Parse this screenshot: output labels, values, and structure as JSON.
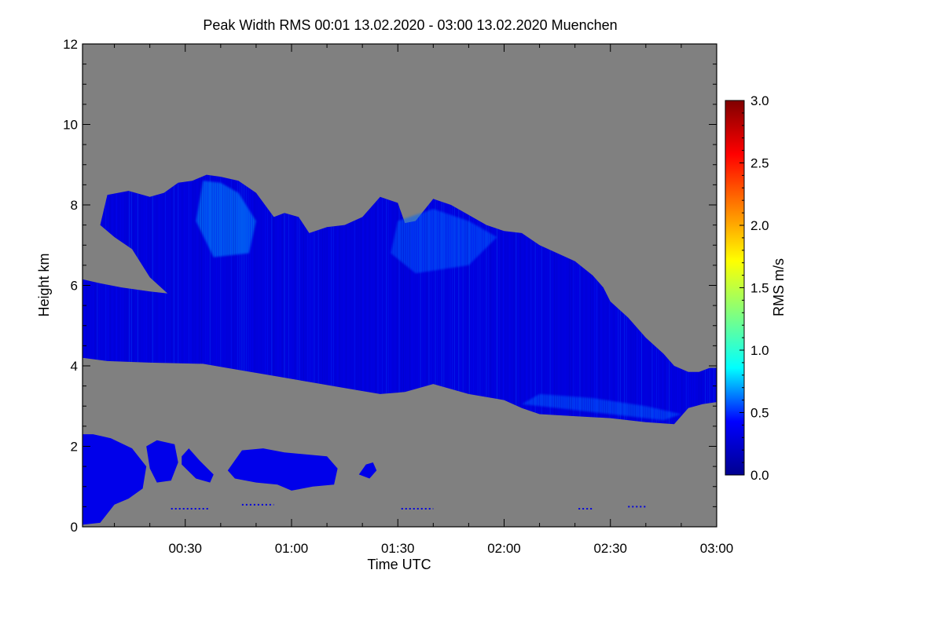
{
  "chart_data": {
    "type": "heatmap",
    "title": "Peak Width RMS   00:01 13.02.2020 - 03:00 13.02.2020 Muenchen",
    "xlabel": "Time UTC",
    "ylabel": "Height km",
    "x_ticks": [
      "00:30",
      "01:00",
      "01:30",
      "02:00",
      "02:30",
      "03:00"
    ],
    "x_tick_minutes": [
      30,
      60,
      90,
      120,
      150,
      180
    ],
    "xlim_minutes": [
      1,
      180
    ],
    "y_ticks": [
      0,
      2,
      4,
      6,
      8,
      10,
      12
    ],
    "ylim": [
      0,
      12
    ],
    "background_color": "#808080",
    "colorbar": {
      "label": "RMS m/s",
      "range": [
        0.0,
        3.0
      ],
      "ticks": [
        "0.0",
        "0.5",
        "1.0",
        "1.5",
        "2.0",
        "2.5",
        "3.0"
      ],
      "tick_values": [
        0.0,
        0.5,
        1.0,
        1.5,
        2.0,
        2.5,
        3.0
      ],
      "colors": [
        "#00008f",
        "#0000ff",
        "#00ffff",
        "#80ff80",
        "#ffff00",
        "#ff8000",
        "#ff0000",
        "#800000"
      ]
    },
    "regions": [
      {
        "name": "main-cloud-layer",
        "rms_typical": 0.3,
        "outline": [
          [
            1,
            4.2
          ],
          [
            8,
            4.12
          ],
          [
            20,
            4.08
          ],
          [
            35,
            4.05
          ],
          [
            45,
            3.9
          ],
          [
            55,
            3.75
          ],
          [
            65,
            3.6
          ],
          [
            75,
            3.45
          ],
          [
            85,
            3.3
          ],
          [
            92,
            3.35
          ],
          [
            100,
            3.55
          ],
          [
            110,
            3.3
          ],
          [
            120,
            3.15
          ],
          [
            125,
            2.95
          ],
          [
            130,
            2.8
          ],
          [
            140,
            2.75
          ],
          [
            150,
            2.7
          ],
          [
            160,
            2.6
          ],
          [
            168,
            2.55
          ],
          [
            172,
            2.95
          ],
          [
            176,
            3.05
          ],
          [
            180,
            3.1
          ],
          [
            180,
            3.95
          ],
          [
            178,
            3.95
          ],
          [
            175,
            3.85
          ],
          [
            172,
            3.85
          ],
          [
            168,
            4.0
          ],
          [
            165,
            4.3
          ],
          [
            160,
            4.7
          ],
          [
            155,
            5.2
          ],
          [
            150,
            5.6
          ],
          [
            148,
            5.95
          ],
          [
            145,
            6.25
          ],
          [
            140,
            6.6
          ],
          [
            130,
            7.0
          ],
          [
            125,
            7.3
          ],
          [
            120,
            7.35
          ],
          [
            115,
            7.5
          ],
          [
            110,
            7.75
          ],
          [
            105,
            8.0
          ],
          [
            100,
            8.15
          ],
          [
            95,
            7.6
          ],
          [
            92,
            7.55
          ],
          [
            90,
            8.05
          ],
          [
            85,
            8.2
          ],
          [
            80,
            7.7
          ],
          [
            75,
            7.5
          ],
          [
            70,
            7.45
          ],
          [
            65,
            7.3
          ],
          [
            62,
            7.7
          ],
          [
            58,
            7.8
          ],
          [
            55,
            7.7
          ],
          [
            50,
            8.3
          ],
          [
            45,
            8.6
          ],
          [
            40,
            8.7
          ],
          [
            36,
            8.75
          ],
          [
            32,
            8.6
          ],
          [
            28,
            8.55
          ],
          [
            24,
            8.3
          ],
          [
            20,
            8.2
          ],
          [
            14,
            8.35
          ],
          [
            8,
            8.25
          ],
          [
            6,
            7.5
          ],
          [
            10,
            7.2
          ],
          [
            15,
            6.9
          ],
          [
            20,
            6.2
          ],
          [
            25,
            5.8
          ],
          [
            20,
            5.85
          ],
          [
            12,
            5.95
          ],
          [
            6,
            6.05
          ],
          [
            1,
            6.15
          ]
        ]
      },
      {
        "name": "low-cloud-left",
        "rms_typical": 0.35,
        "outline": [
          [
            1,
            0.05
          ],
          [
            6,
            0.1
          ],
          [
            10,
            0.55
          ],
          [
            14,
            0.7
          ],
          [
            18,
            0.95
          ],
          [
            19,
            1.5
          ],
          [
            15,
            1.95
          ],
          [
            9,
            2.2
          ],
          [
            4,
            2.3
          ],
          [
            1,
            2.3
          ]
        ]
      },
      {
        "name": "low-cloud-small-1",
        "rms_typical": 0.35,
        "outline": [
          [
            19,
            2.0
          ],
          [
            22,
            2.15
          ],
          [
            27,
            2.05
          ],
          [
            28,
            1.6
          ],
          [
            26,
            1.15
          ],
          [
            22,
            1.1
          ],
          [
            20,
            1.45
          ]
        ]
      },
      {
        "name": "low-cloud-small-2",
        "rms_typical": 0.35,
        "outline": [
          [
            29,
            1.75
          ],
          [
            31,
            1.95
          ],
          [
            34,
            1.65
          ],
          [
            38,
            1.3
          ],
          [
            37,
            1.1
          ],
          [
            33,
            1.2
          ],
          [
            29,
            1.55
          ]
        ]
      },
      {
        "name": "low-cloud-center",
        "rms_typical": 0.35,
        "outline": [
          [
            42,
            1.4
          ],
          [
            46,
            1.9
          ],
          [
            52,
            1.95
          ],
          [
            58,
            1.85
          ],
          [
            64,
            1.8
          ],
          [
            70,
            1.75
          ],
          [
            73,
            1.45
          ],
          [
            72,
            1.05
          ],
          [
            66,
            1.0
          ],
          [
            60,
            0.9
          ],
          [
            56,
            1.05
          ],
          [
            50,
            1.1
          ],
          [
            44,
            1.2
          ]
        ]
      },
      {
        "name": "low-cloud-speck",
        "rms_typical": 0.35,
        "outline": [
          [
            79,
            1.3
          ],
          [
            81,
            1.55
          ],
          [
            83,
            1.6
          ],
          [
            84,
            1.4
          ],
          [
            82,
            1.2
          ]
        ]
      }
    ],
    "enhanced_regions": [
      {
        "name": "upper-left-turbulence",
        "rms_typical": 0.7,
        "outline": [
          [
            35,
            8.6
          ],
          [
            40,
            8.55
          ],
          [
            45,
            8.3
          ],
          [
            50,
            7.6
          ],
          [
            48,
            6.8
          ],
          [
            38,
            6.7
          ],
          [
            33,
            7.6
          ]
        ]
      },
      {
        "name": "upper-middle-turbulence",
        "rms_typical": 0.6,
        "outline": [
          [
            90,
            7.6
          ],
          [
            100,
            7.9
          ],
          [
            110,
            7.6
          ],
          [
            118,
            7.2
          ],
          [
            110,
            6.5
          ],
          [
            95,
            6.3
          ],
          [
            88,
            6.8
          ]
        ]
      },
      {
        "name": "base-turbulence",
        "rms_typical": 0.6,
        "outline": [
          [
            130,
            3.3
          ],
          [
            145,
            3.2
          ],
          [
            160,
            3.0
          ],
          [
            170,
            2.8
          ],
          [
            165,
            2.65
          ],
          [
            150,
            2.8
          ],
          [
            135,
            2.95
          ],
          [
            125,
            3.05
          ]
        ]
      }
    ],
    "noise_lines": [
      {
        "x_start": 26,
        "x_end": 37,
        "y": 0.45
      },
      {
        "x_start": 46,
        "x_end": 55,
        "y": 0.55
      },
      {
        "x_start": 91,
        "x_end": 100,
        "y": 0.45
      },
      {
        "x_start": 141,
        "x_end": 145,
        "y": 0.45
      },
      {
        "x_start": 155,
        "x_end": 160,
        "y": 0.5
      }
    ]
  }
}
